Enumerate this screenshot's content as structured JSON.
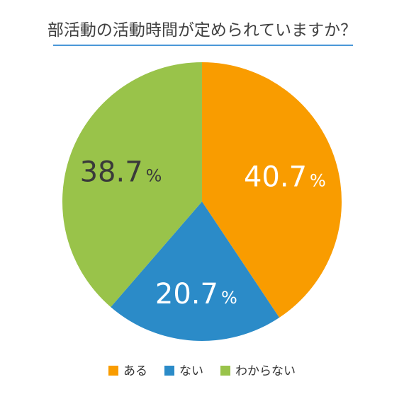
{
  "chart_data": {
    "type": "pie",
    "title": "部活動の活動時間が定められていますか？",
    "unit": "%",
    "slices": [
      {
        "label": "ある",
        "value": 40.7,
        "color": "#f99c00",
        "label_color": "#ffffff"
      },
      {
        "label": "ない",
        "value": 20.7,
        "color": "#2b8bc8",
        "label_color": "#ffffff"
      },
      {
        "label": "わからない",
        "value": 38.7,
        "color": "#99c34a",
        "label_color": "#3a3a3a"
      }
    ],
    "start": "12 o'clock",
    "direction": "clockwise",
    "legend_placement": "bottom"
  },
  "title_rule_color": "#4a97d8"
}
